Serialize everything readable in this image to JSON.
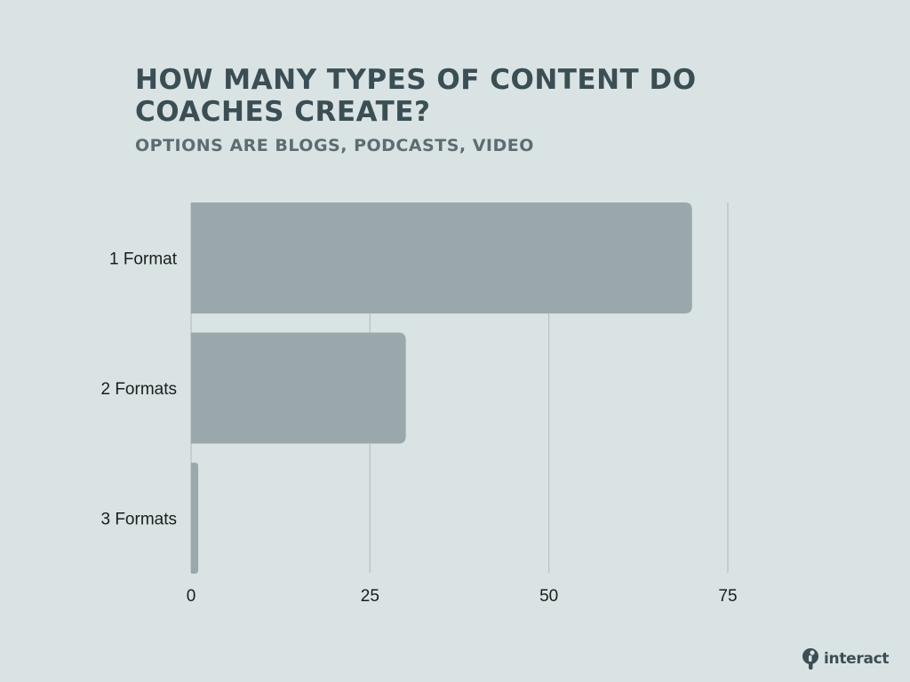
{
  "chart_data": {
    "type": "bar",
    "orientation": "horizontal",
    "title": "HOW MANY TYPES OF CONTENT DO COACHES CREATE?",
    "subtitle": "OPTIONS ARE BLOGS, PODCASTS, VIDEO",
    "categories": [
      "1 Format",
      "2 Formats",
      "3 Formats"
    ],
    "values": [
      70,
      30,
      1
    ],
    "xticks": [
      0,
      25,
      50,
      75
    ],
    "xlim": [
      0,
      75
    ],
    "grid": true,
    "colors": {
      "bar": "#9aa8ac",
      "grid": "#b7c0c2",
      "background": "#d9e3e4"
    }
  },
  "brand": {
    "name": "interact",
    "icon": "interact-logo-icon"
  }
}
